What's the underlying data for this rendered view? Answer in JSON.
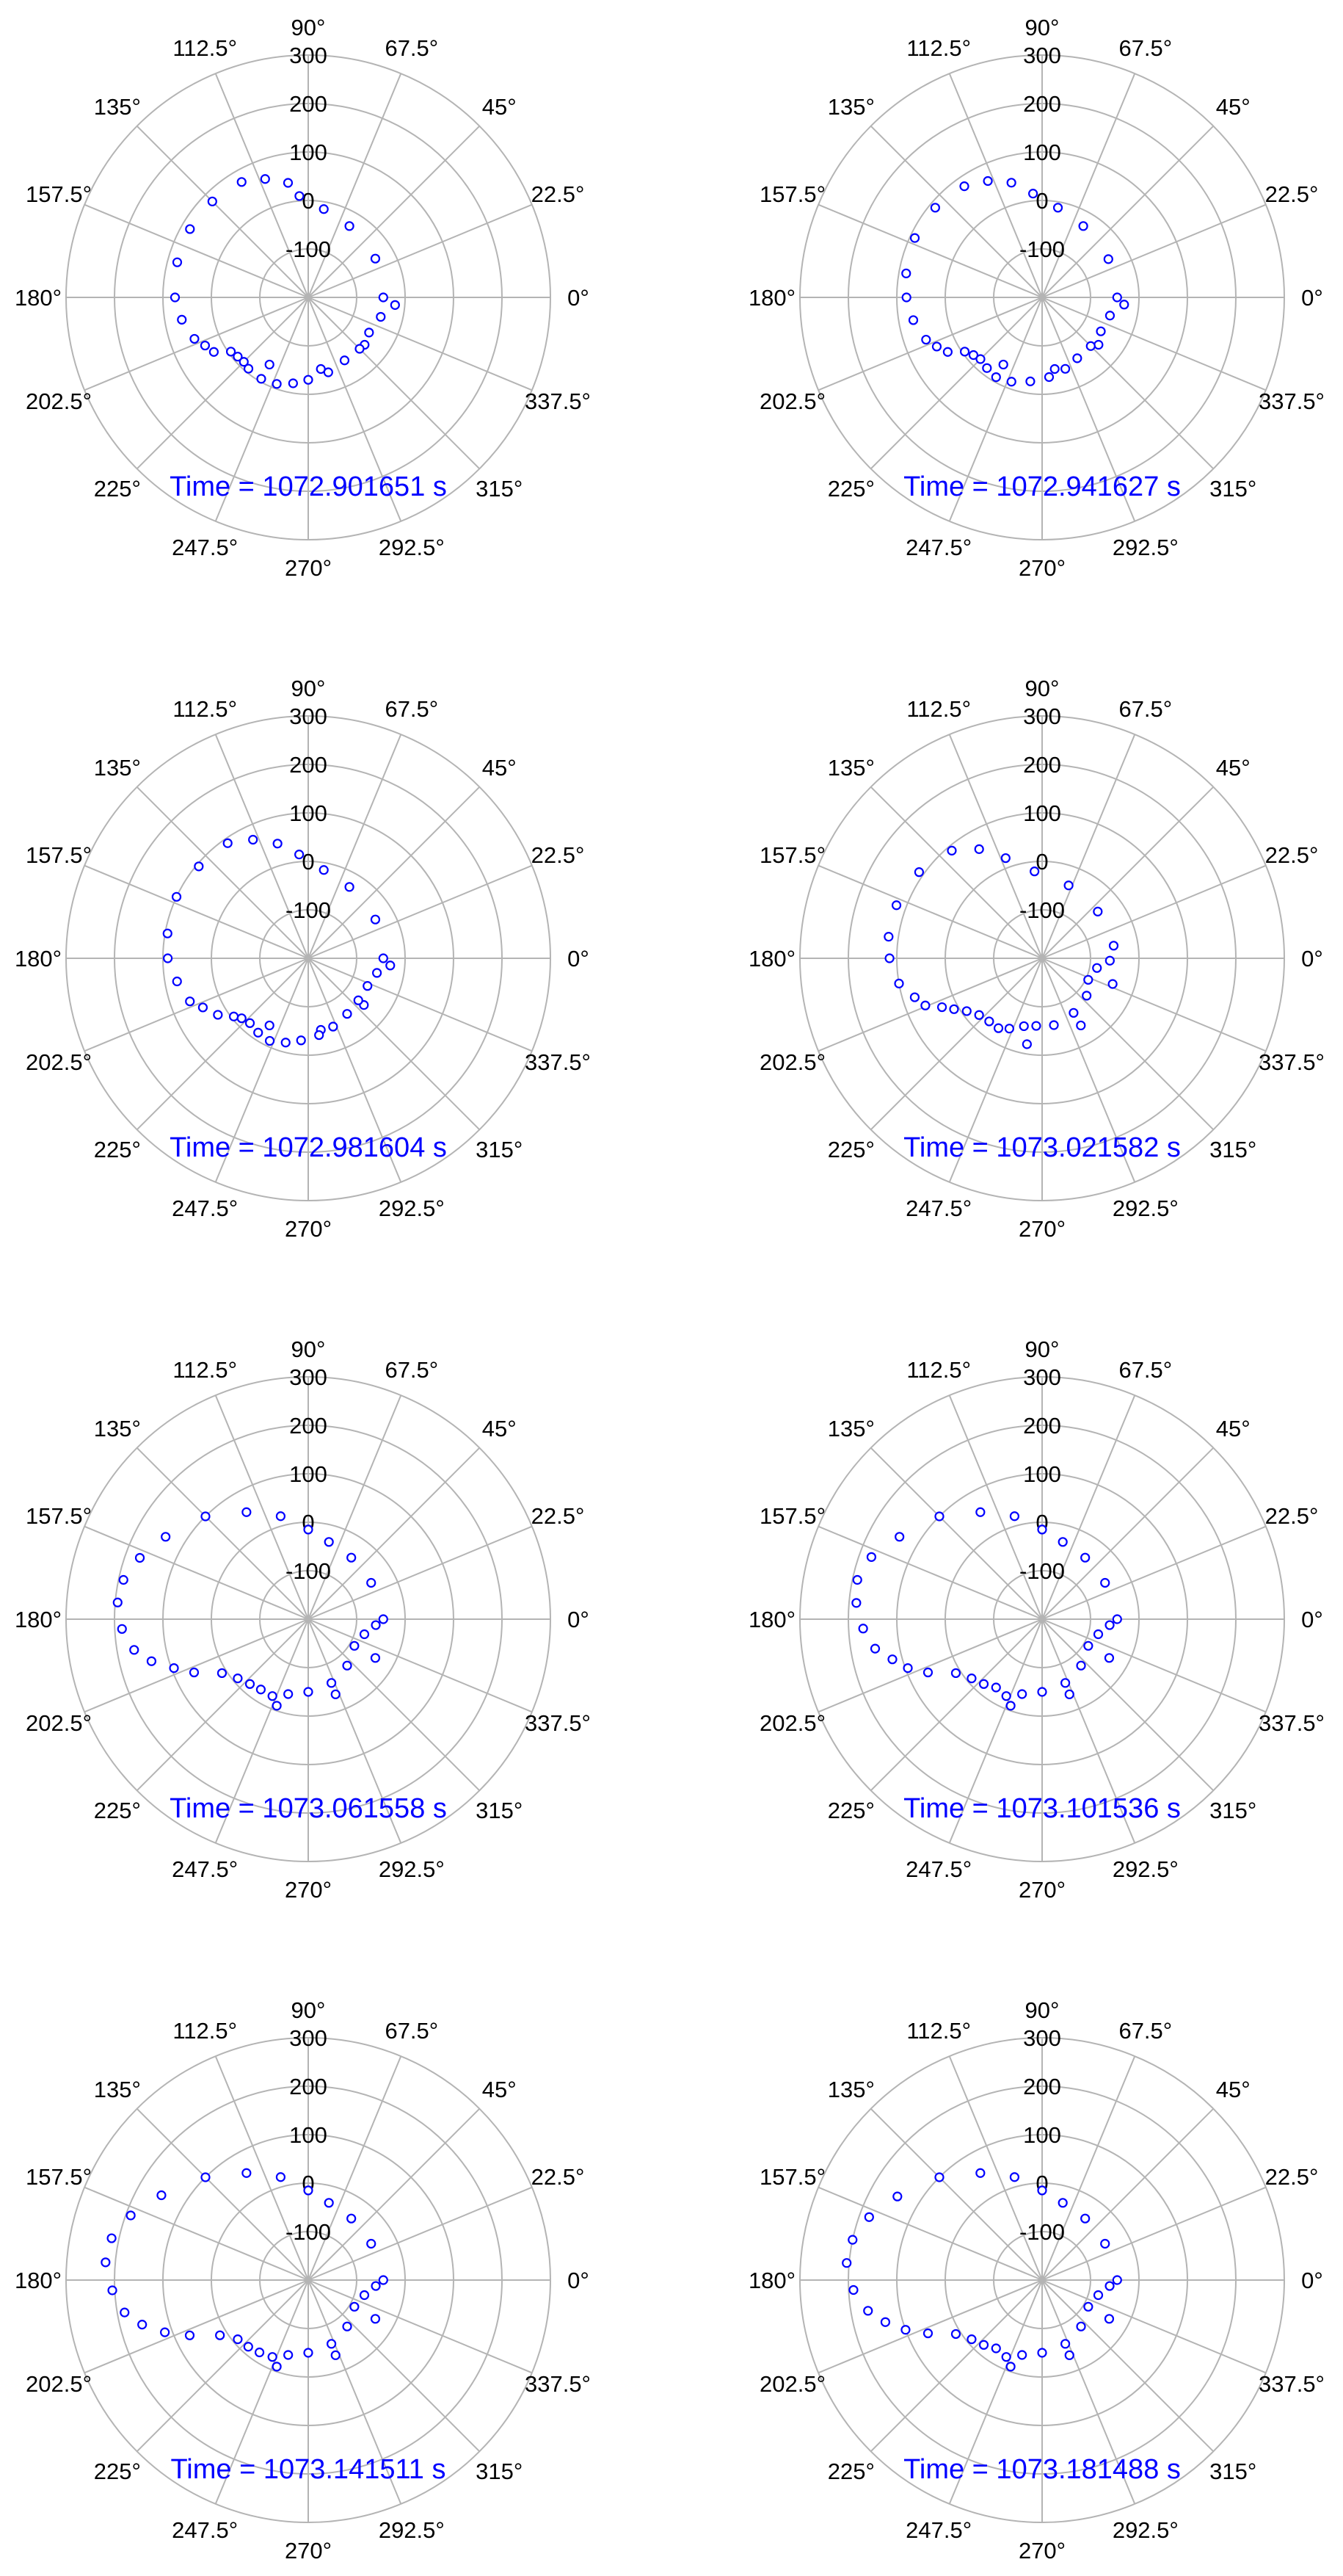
{
  "colors": {
    "marker": "#0000ff",
    "grid": "#b4b4b4",
    "text": "#000000",
    "annotation": "#0000ff"
  },
  "chart_data": {
    "type": "scatter",
    "coordinate_system": "polar",
    "radial_ticks": [
      -100,
      0,
      100,
      200,
      300
    ],
    "rlim": [
      -200,
      300
    ],
    "angle_ticks": [
      "0°",
      "22.5°",
      "45°",
      "67.5°",
      "90°",
      "112.5°",
      "135°",
      "157.5°",
      "180°",
      "202.5°",
      "225°",
      "247.5°",
      "270°",
      "292.5°",
      "315°",
      "337.5°"
    ],
    "angle_tick_values": [
      0,
      22.5,
      45,
      67.5,
      90,
      112.5,
      135,
      157.5,
      180,
      202.5,
      225,
      247.5,
      270,
      292.5,
      315,
      337.5
    ],
    "grid": true,
    "marker": "open-circle",
    "panels": [
      {
        "annotation": "Time = 1072.901651 s",
        "points": [
          [
            -120,
            -40
          ],
          [
            -80,
            -50
          ],
          [
            -40,
            -48
          ],
          [
            0,
            -45
          ],
          [
            30,
            -40
          ],
          [
            60,
            -30
          ],
          [
            80,
            -15
          ],
          [
            95,
            10
          ],
          [
            100,
            40
          ],
          [
            110,
            60
          ],
          [
            120,
            75
          ],
          [
            135,
            80
          ],
          [
            150,
            82
          ],
          [
            165,
            80
          ],
          [
            180,
            75
          ],
          [
            190,
            65
          ],
          [
            200,
            50
          ],
          [
            205,
            35
          ],
          [
            210,
            25
          ],
          [
            215,
            -5
          ],
          [
            220,
            -10
          ],
          [
            225,
            -12
          ],
          [
            230,
            -8
          ],
          [
            240,
            -6
          ],
          [
            250,
            -10
          ],
          [
            260,
            -20
          ],
          [
            270,
            -30
          ],
          [
            285,
            -40
          ],
          [
            300,
            -50
          ],
          [
            315,
            -50
          ],
          [
            330,
            -55
          ],
          [
            345,
            -45
          ],
          [
            355,
            -20
          ]
        ]
      },
      {
        "annotation": "Time = 1072.941627 s",
        "points": [
          [
            -120,
            -40
          ],
          [
            -80,
            -50
          ],
          [
            -40,
            -48
          ],
          [
            0,
            -45
          ],
          [
            30,
            -42
          ],
          [
            60,
            -30
          ],
          [
            80,
            -12
          ],
          [
            95,
            15
          ],
          [
            105,
            45
          ],
          [
            115,
            65
          ],
          [
            125,
            80
          ],
          [
            140,
            88
          ],
          [
            155,
            90
          ],
          [
            170,
            85
          ],
          [
            180,
            80
          ],
          [
            190,
            70
          ],
          [
            200,
            55
          ],
          [
            205,
            40
          ],
          [
            210,
            25
          ],
          [
            215,
            -5
          ],
          [
            220,
            -15
          ],
          [
            225,
            -20
          ],
          [
            232,
            -15
          ],
          [
            240,
            -10
          ],
          [
            250,
            -15
          ],
          [
            262,
            -25
          ],
          [
            275,
            -35
          ],
          [
            288,
            -45
          ],
          [
            300,
            -55
          ],
          [
            315,
            -58
          ],
          [
            330,
            -60
          ],
          [
            345,
            -55
          ],
          [
            355,
            -30
          ]
        ]
      },
      {
        "annotation": "Time = 1072.981604 s",
        "points": [
          [
            -120,
            -40
          ],
          [
            -80,
            -50
          ],
          [
            -40,
            -50
          ],
          [
            0,
            -45
          ],
          [
            30,
            -40
          ],
          [
            60,
            -30
          ],
          [
            80,
            -15
          ],
          [
            95,
            15
          ],
          [
            105,
            45
          ],
          [
            115,
            70
          ],
          [
            125,
            90
          ],
          [
            140,
            95
          ],
          [
            155,
            100
          ],
          [
            170,
            95
          ],
          [
            180,
            90
          ],
          [
            190,
            75
          ],
          [
            200,
            60
          ],
          [
            205,
            40
          ],
          [
            212,
            20
          ],
          [
            218,
            -5
          ],
          [
            222,
            -15
          ],
          [
            228,
            -20
          ],
          [
            236,
            -15
          ],
          [
            245,
            -12
          ],
          [
            255,
            -20
          ],
          [
            265,
            -30
          ],
          [
            278,
            -40
          ],
          [
            290,
            -50
          ],
          [
            305,
            -60
          ],
          [
            320,
            -65
          ],
          [
            335,
            -65
          ],
          [
            348,
            -55
          ],
          [
            355,
            -30
          ]
        ]
      },
      {
        "annotation": "Time = 1073.021582 s",
        "points": [
          [
            -100,
            -20
          ],
          [
            -60,
            -40
          ],
          [
            -20,
            -45
          ],
          [
            10,
            -50
          ],
          [
            40,
            -50
          ],
          [
            70,
            -40
          ],
          [
            95,
            -20
          ],
          [
            110,
            20
          ],
          [
            120,
            60
          ],
          [
            130,
            90
          ],
          [
            145,
            110
          ],
          [
            160,
            120
          ],
          [
            172,
            120
          ],
          [
            180,
            115
          ],
          [
            190,
            100
          ],
          [
            197,
            75
          ],
          [
            202,
            60
          ],
          [
            206,
            30
          ],
          [
            210,
            10
          ],
          [
            215,
            -10
          ],
          [
            222,
            -25
          ],
          [
            230,
            -30
          ],
          [
            238,
            -30
          ],
          [
            245,
            -40
          ],
          [
            255,
            -55
          ],
          [
            265,
            -60
          ],
          [
            280,
            -60
          ],
          [
            300,
            -70
          ],
          [
            320,
            -80
          ],
          [
            335,
            -95
          ],
          [
            350,
            -85
          ],
          [
            358,
            -60
          ]
        ]
      },
      {
        "annotation": "Time = 1073.061558 s",
        "points": [
          [
            -110,
            -10
          ],
          [
            -70,
            -35
          ],
          [
            -30,
            -40
          ],
          [
            0,
            -45
          ],
          [
            30,
            -50
          ],
          [
            55,
            -45
          ],
          [
            75,
            -35
          ],
          [
            90,
            -15
          ],
          [
            105,
            20
          ],
          [
            120,
            55
          ],
          [
            135,
            100
          ],
          [
            150,
            140
          ],
          [
            160,
            170
          ],
          [
            168,
            190
          ],
          [
            175,
            195
          ],
          [
            183,
            185
          ],
          [
            190,
            165
          ],
          [
            195,
            135
          ],
          [
            200,
            95
          ],
          [
            205,
            60
          ],
          [
            212,
            10
          ],
          [
            220,
            -10
          ],
          [
            228,
            -20
          ],
          [
            236,
            -25
          ],
          [
            245,
            -25
          ],
          [
            255,
            -40
          ],
          [
            270,
            -50
          ],
          [
            290,
            -60
          ],
          [
            310,
            -75
          ],
          [
            330,
            -90
          ],
          [
            345,
            -80
          ],
          [
            355,
            -60
          ]
        ]
      },
      {
        "annotation": "Time = 1073.101536 s",
        "points": [
          [
            -110,
            -10
          ],
          [
            -70,
            -35
          ],
          [
            -30,
            -40
          ],
          [
            0,
            -45
          ],
          [
            30,
            -50
          ],
          [
            55,
            -45
          ],
          [
            75,
            -35
          ],
          [
            90,
            -15
          ],
          [
            105,
            20
          ],
          [
            120,
            55
          ],
          [
            135,
            100
          ],
          [
            150,
            140
          ],
          [
            160,
            175
          ],
          [
            168,
            190
          ],
          [
            175,
            185
          ],
          [
            183,
            170
          ],
          [
            190,
            150
          ],
          [
            195,
            120
          ],
          [
            200,
            95
          ],
          [
            205,
            60
          ],
          [
            212,
            10
          ],
          [
            220,
            -10
          ],
          [
            228,
            -20
          ],
          [
            236,
            -30
          ],
          [
            245,
            -25
          ],
          [
            255,
            -40
          ],
          [
            270,
            -50
          ],
          [
            290,
            -60
          ],
          [
            310,
            -75
          ],
          [
            330,
            -90
          ],
          [
            345,
            -80
          ],
          [
            355,
            -60
          ]
        ]
      },
      {
        "annotation": "Time = 1073.141511 s",
        "points": [
          [
            -110,
            -10
          ],
          [
            -70,
            -35
          ],
          [
            -30,
            -40
          ],
          [
            0,
            -45
          ],
          [
            30,
            -50
          ],
          [
            55,
            -45
          ],
          [
            75,
            -35
          ],
          [
            90,
            -15
          ],
          [
            105,
            20
          ],
          [
            120,
            55
          ],
          [
            135,
            100
          ],
          [
            150,
            150
          ],
          [
            160,
            190
          ],
          [
            168,
            215
          ],
          [
            175,
            220
          ],
          [
            183,
            205
          ],
          [
            190,
            185
          ],
          [
            195,
            155
          ],
          [
            200,
            115
          ],
          [
            205,
            70
          ],
          [
            212,
            15
          ],
          [
            220,
            -10
          ],
          [
            228,
            -15
          ],
          [
            236,
            -20
          ],
          [
            245,
            -25
          ],
          [
            255,
            -40
          ],
          [
            270,
            -50
          ],
          [
            290,
            -60
          ],
          [
            310,
            -75
          ],
          [
            330,
            -90
          ],
          [
            345,
            -80
          ],
          [
            355,
            -60
          ]
        ]
      },
      {
        "annotation": "Time = 1073.181488 s",
        "points": [
          [
            -110,
            -10
          ],
          [
            -70,
            -35
          ],
          [
            -30,
            -40
          ],
          [
            0,
            -45
          ],
          [
            30,
            -50
          ],
          [
            55,
            -45
          ],
          [
            75,
            -35
          ],
          [
            90,
            -15
          ],
          [
            105,
            20
          ],
          [
            120,
            55
          ],
          [
            135,
            100
          ],
          [
            150,
            145
          ],
          [
            160,
            180
          ],
          [
            168,
            200
          ],
          [
            175,
            205
          ],
          [
            183,
            190
          ],
          [
            190,
            165
          ],
          [
            195,
            135
          ],
          [
            200,
            100
          ],
          [
            205,
            60
          ],
          [
            212,
            10
          ],
          [
            220,
            -10
          ],
          [
            228,
            -20
          ],
          [
            236,
            -30
          ],
          [
            245,
            -25
          ],
          [
            255,
            -40
          ],
          [
            270,
            -50
          ],
          [
            290,
            -60
          ],
          [
            310,
            -75
          ],
          [
            330,
            -90
          ],
          [
            345,
            -80
          ],
          [
            355,
            -60
          ]
        ]
      }
    ]
  }
}
